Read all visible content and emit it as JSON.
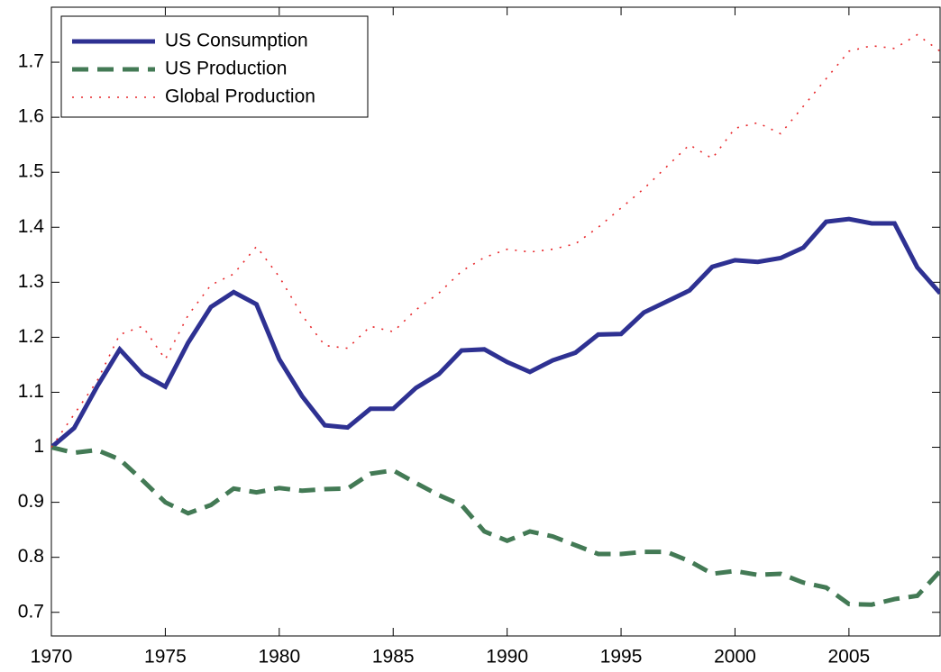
{
  "chart_data": {
    "type": "line",
    "x": [
      1970,
      1971,
      1972,
      1973,
      1974,
      1975,
      1976,
      1977,
      1978,
      1979,
      1980,
      1981,
      1982,
      1983,
      1984,
      1985,
      1986,
      1987,
      1988,
      1989,
      1990,
      1991,
      1992,
      1993,
      1994,
      1995,
      1996,
      1997,
      1998,
      1999,
      2000,
      2001,
      2002,
      2003,
      2004,
      2005,
      2006,
      2007,
      2008,
      2009
    ],
    "series": [
      {
        "name": "US Consumption",
        "color": "#2e3192",
        "style": "solid",
        "values": [
          1.0,
          1.035,
          1.11,
          1.178,
          1.133,
          1.11,
          1.19,
          1.255,
          1.282,
          1.26,
          1.16,
          1.093,
          1.04,
          1.036,
          1.07,
          1.07,
          1.108,
          1.133,
          1.176,
          1.178,
          1.155,
          1.137,
          1.158,
          1.172,
          1.205,
          1.206,
          1.245,
          1.265,
          1.285,
          1.328,
          1.34,
          1.337,
          1.344,
          1.363,
          1.41,
          1.415,
          1.407,
          1.407,
          1.327,
          1.28
        ]
      },
      {
        "name": "US Production",
        "color": "#437a55",
        "style": "dashed",
        "values": [
          1.0,
          0.99,
          0.995,
          0.978,
          0.94,
          0.9,
          0.88,
          0.895,
          0.925,
          0.918,
          0.926,
          0.921,
          0.924,
          0.925,
          0.952,
          0.958,
          0.935,
          0.913,
          0.895,
          0.847,
          0.83,
          0.847,
          0.838,
          0.822,
          0.806,
          0.806,
          0.81,
          0.81,
          0.793,
          0.77,
          0.775,
          0.768,
          0.77,
          0.754,
          0.745,
          0.715,
          0.714,
          0.724,
          0.73,
          0.775
        ]
      },
      {
        "name": "Global Production",
        "color": "#e8262a",
        "style": "dotted",
        "values": [
          1.0,
          1.06,
          1.12,
          1.205,
          1.22,
          1.16,
          1.24,
          1.295,
          1.315,
          1.365,
          1.31,
          1.24,
          1.185,
          1.18,
          1.22,
          1.21,
          1.25,
          1.28,
          1.32,
          1.345,
          1.36,
          1.355,
          1.36,
          1.37,
          1.4,
          1.435,
          1.47,
          1.51,
          1.55,
          1.525,
          1.58,
          1.59,
          1.57,
          1.62,
          1.67,
          1.72,
          1.73,
          1.725,
          1.75,
          1.72
        ]
      }
    ],
    "xlim": [
      1970,
      2009
    ],
    "xticks": [
      1970,
      1975,
      1980,
      1985,
      1990,
      1995,
      2000,
      2005
    ],
    "ylim": [
      0.657,
      1.8
    ],
    "yticks": [
      0.7,
      0.8,
      0.9,
      1,
      1.1,
      1.2,
      1.3,
      1.4,
      1.5,
      1.6,
      1.7
    ],
    "grid": false,
    "legend": "upper left"
  }
}
